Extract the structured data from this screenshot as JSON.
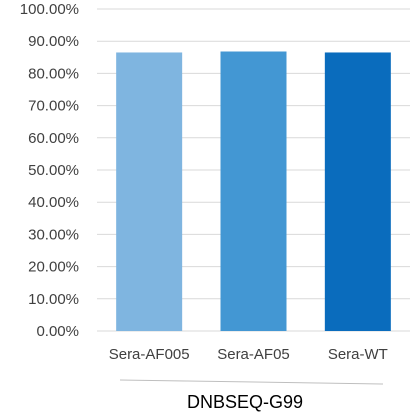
{
  "chart_data": {
    "type": "bar",
    "categories": [
      "Sera-AF005",
      "Sera-AF05",
      "Sera-WT"
    ],
    "values": [
      86.5,
      86.8,
      86.5
    ],
    "colors": [
      "#7fb5e0",
      "#4397d3",
      "#0a6cbd"
    ],
    "group_label": "DNBSEQ-G99",
    "ylim": [
      0,
      100
    ],
    "yticks": [
      0,
      10,
      20,
      30,
      40,
      50,
      60,
      70,
      80,
      90,
      100
    ],
    "ytick_labels": [
      "0.00%",
      "10.00%",
      "20.00%",
      "30.00%",
      "40.00%",
      "50.00%",
      "60.00%",
      "70.00%",
      "80.00%",
      "90.00%",
      "100.00%"
    ],
    "grid": true,
    "legend": "none",
    "gridline_color": "#d9d9d9",
    "text_color": "#404040"
  }
}
